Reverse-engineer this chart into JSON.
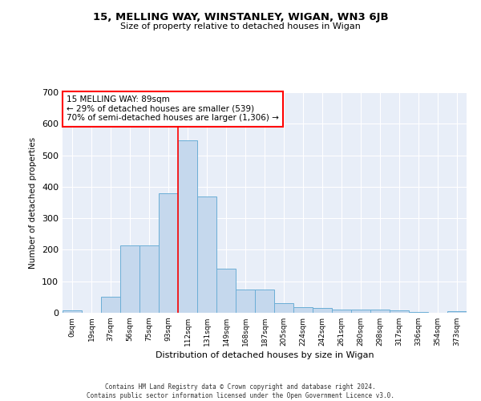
{
  "title": "15, MELLING WAY, WINSTANLEY, WIGAN, WN3 6JB",
  "subtitle": "Size of property relative to detached houses in Wigan",
  "xlabel": "Distribution of detached houses by size in Wigan",
  "ylabel": "Number of detached properties",
  "bar_labels": [
    "0sqm",
    "19sqm",
    "37sqm",
    "56sqm",
    "75sqm",
    "93sqm",
    "112sqm",
    "131sqm",
    "149sqm",
    "168sqm",
    "187sqm",
    "205sqm",
    "224sqm",
    "242sqm",
    "261sqm",
    "280sqm",
    "298sqm",
    "317sqm",
    "336sqm",
    "354sqm",
    "373sqm"
  ],
  "bar_values": [
    7,
    0,
    52,
    215,
    215,
    380,
    548,
    370,
    140,
    75,
    75,
    30,
    18,
    15,
    10,
    10,
    10,
    7,
    2,
    0,
    5
  ],
  "bar_color": "#c5d8ed",
  "bar_edge_color": "#6baed6",
  "vline_x_index": 5,
  "vline_color": "red",
  "annotation_text": "15 MELLING WAY: 89sqm\n← 29% of detached houses are smaller (539)\n70% of semi-detached houses are larger (1,306) →",
  "annotation_box_color": "white",
  "annotation_box_edge": "red",
  "ylim": [
    0,
    700
  ],
  "yticks": [
    0,
    100,
    200,
    300,
    400,
    500,
    600,
    700
  ],
  "bg_color": "#e8eef8",
  "footer_line1": "Contains HM Land Registry data © Crown copyright and database right 2024.",
  "footer_line2": "Contains public sector information licensed under the Open Government Licence v3.0."
}
